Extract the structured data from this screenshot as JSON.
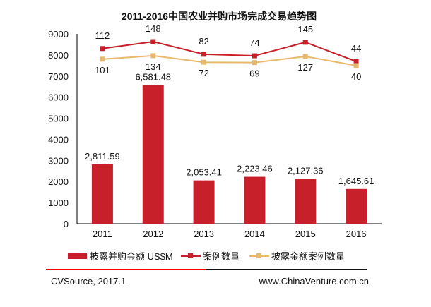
{
  "chart_data": {
    "type": "bar",
    "title": "2011-2016中国农业并购市场完成交易趋势图",
    "categories": [
      "2011",
      "2012",
      "2013",
      "2014",
      "2015",
      "2016"
    ],
    "ylim": [
      0,
      9000
    ],
    "yticks": [
      0,
      1000,
      2000,
      3000,
      4000,
      5000,
      6000,
      7000,
      8000,
      9000
    ],
    "series": [
      {
        "name": "披露并购金额 US$M",
        "type": "bar",
        "color": "#c8202a",
        "values": [
          2811.59,
          6581.48,
          2053.41,
          2223.46,
          2127.36,
          1645.61
        ],
        "labels": [
          "2,811.59",
          "6,581.48",
          "2,053.41",
          "2,223.46",
          "2,127.36",
          "1,645.61"
        ]
      },
      {
        "name": "案例数量",
        "type": "line",
        "axis": "secondary",
        "color": "#c8202a",
        "values": [
          112,
          148,
          82,
          74,
          145,
          44
        ]
      },
      {
        "name": "披露金额案例数量",
        "type": "line",
        "axis": "secondary",
        "color": "#e8b96a",
        "values": [
          101,
          134,
          72,
          69,
          127,
          40
        ]
      }
    ],
    "legend": "bottom"
  },
  "footer": {
    "source": "CVSource, 2017.1",
    "website": "www.ChinaVenture.com.cn"
  }
}
